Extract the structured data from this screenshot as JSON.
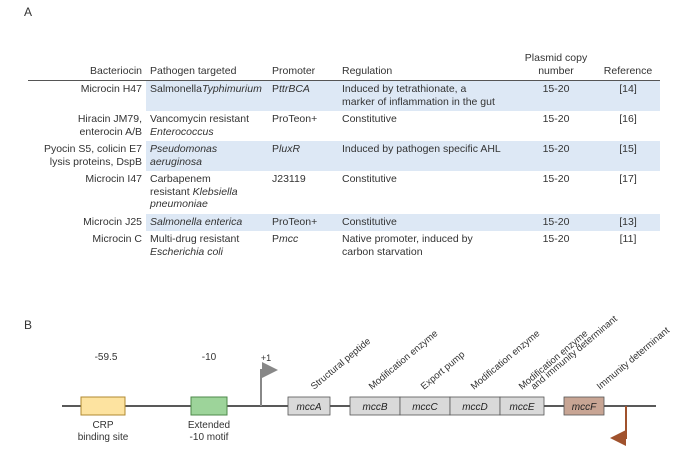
{
  "panel_a": {
    "label": "A",
    "headers": [
      "Bacteriocin",
      "Pathogen targeted",
      "Promoter",
      "Regulation",
      "Plasmid copy number",
      "Reference"
    ],
    "rows": [
      {
        "bacteriocin": [
          "Microcin H47"
        ],
        "pathogen": [
          [
            "Salmonella",
            "Typhimurium"
          ]
        ],
        "pathogen_italic": [
          true,
          false
        ],
        "promoter_prefix": "P",
        "promoter": "ttrBCA",
        "promoter_italic": true,
        "regulation": [
          "Induced by tetrathionate, a",
          "marker of inflammation in the gut"
        ],
        "copy": "15-20",
        "ref": "[14]",
        "shaded": true
      },
      {
        "bacteriocin": [
          "Hiracin JM79,",
          "enterocin A/B"
        ],
        "pathogen": [
          [
            "Vancomycin resistant"
          ],
          [
            "Enterococcus"
          ]
        ],
        "pathogen_italic": [
          false,
          true
        ],
        "promoter_prefix": "",
        "promoter": "ProTeon+",
        "promoter_italic": false,
        "regulation": [
          "Constitutive"
        ],
        "copy": "15-20",
        "ref": "[16]",
        "shaded": false
      },
      {
        "bacteriocin": [
          "Pyocin S5, colicin E7",
          "lysis proteins, DspB"
        ],
        "pathogen": [
          [
            "Pseudomonas"
          ],
          [
            "aeruginosa"
          ]
        ],
        "pathogen_italic": [
          true,
          true
        ],
        "promoter_prefix": "P",
        "promoter": "luxR",
        "promoter_italic": true,
        "regulation": [
          "Induced by pathogen specific AHL"
        ],
        "copy": "15-20",
        "ref": "[15]",
        "shaded": true
      },
      {
        "bacteriocin": [
          "Microcin I47"
        ],
        "pathogen": [
          [
            "Carbapenem"
          ],
          [
            "resistant ",
            "Klebsiella"
          ],
          [
            "pneumoniae"
          ]
        ],
        "pathogen_italic": [
          false,
          true,
          true
        ],
        "promoter_prefix": "",
        "promoter": "J23119",
        "promoter_italic": false,
        "regulation": [
          "Constitutive"
        ],
        "copy": "15-20",
        "ref": "[17]",
        "shaded": false
      },
      {
        "bacteriocin": [
          "Microcin J25"
        ],
        "pathogen": [
          [
            "Salmonella enterica"
          ]
        ],
        "pathogen_italic": [
          true
        ],
        "promoter_prefix": "",
        "promoter": "ProTeon+",
        "promoter_italic": false,
        "regulation": [
          "Constitutive"
        ],
        "copy": "15-20",
        "ref": "[13]",
        "shaded": true
      },
      {
        "bacteriocin": [
          "Microcin C"
        ],
        "pathogen": [
          [
            "Multi-drug resistant"
          ],
          [
            "Escherichia coli"
          ]
        ],
        "pathogen_italic": [
          false,
          true
        ],
        "promoter_prefix": "P",
        "promoter": "mcc",
        "promoter_italic": true,
        "regulation": [
          "Native promoter, induced by",
          "carbon starvation"
        ],
        "copy": "15-20",
        "ref": "[11]",
        "shaded": false
      }
    ]
  },
  "panel_b": {
    "label": "B",
    "pos_crp": "-59.5",
    "pos_m10": "-10",
    "pos_tss": "+1",
    "crp_label": [
      "CRP",
      "binding site"
    ],
    "ext_label": [
      "Extended",
      "-10 motif"
    ],
    "genes": [
      "mccA",
      "mccB",
      "mccC",
      "mccD",
      "mccE",
      "mccF"
    ],
    "gene_roles": [
      "Structural peptide",
      "Modification enzyme",
      "Export pump",
      "Modification enzyme",
      "Modification enzyme",
      "and immunity determinant",
      "Immunity determinant"
    ],
    "colors": {
      "crp": "#fde3a0",
      "crp_stroke": "#b08a30",
      "ext": "#9dd49a",
      "ext_stroke": "#4e8a4b",
      "gene": "#d9d9d9",
      "mccF": "#c8a594",
      "arrow_fwd": "#888888",
      "arrow_rev": "#a0522d"
    }
  }
}
